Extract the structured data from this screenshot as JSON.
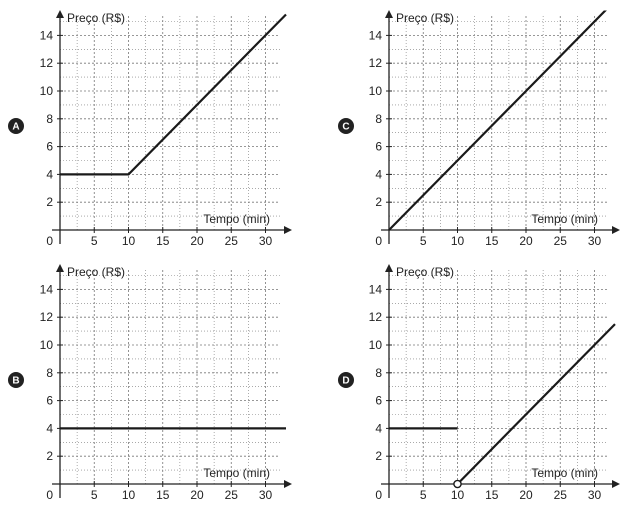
{
  "chart_data": [
    {
      "panel_label": "A",
      "type": "line",
      "ylabel": "Preço (R$)",
      "xlabel": "Tempo (min)",
      "origin_label": "0",
      "xlim": [
        0,
        32
      ],
      "ylim": [
        0,
        15.5
      ],
      "x_ticks": [
        5,
        10,
        15,
        20,
        25,
        30
      ],
      "y_ticks": [
        2,
        4,
        6,
        8,
        10,
        12,
        14
      ],
      "grid": true,
      "segments": [
        {
          "points": [
            [
              0,
              4
            ],
            [
              10,
              4
            ],
            [
              33,
              15.5
            ]
          ],
          "start_marker": "none",
          "end_marker": "none"
        }
      ]
    },
    {
      "panel_label": "C",
      "type": "line",
      "ylabel": "Preço (R$)",
      "xlabel": "Tempo (min)",
      "origin_label": "0",
      "xlim": [
        0,
        32
      ],
      "ylim": [
        0,
        15.5
      ],
      "x_ticks": [
        5,
        10,
        15,
        20,
        25,
        30
      ],
      "y_ticks": [
        2,
        4,
        6,
        8,
        10,
        12,
        14
      ],
      "grid": true,
      "segments": [
        {
          "points": [
            [
              0,
              0
            ],
            [
              32,
              16
            ]
          ],
          "start_marker": "none",
          "end_marker": "none"
        }
      ]
    },
    {
      "panel_label": "B",
      "type": "line",
      "ylabel": "Preço (R$)",
      "xlabel": "Tempo (min)",
      "origin_label": "0",
      "xlim": [
        0,
        32
      ],
      "ylim": [
        0,
        15.5
      ],
      "x_ticks": [
        5,
        10,
        15,
        20,
        25,
        30
      ],
      "y_ticks": [
        2,
        4,
        6,
        8,
        10,
        12,
        14
      ],
      "grid": true,
      "segments": [
        {
          "points": [
            [
              0,
              4
            ],
            [
              33,
              4
            ]
          ],
          "start_marker": "none",
          "end_marker": "none"
        }
      ]
    },
    {
      "panel_label": "D",
      "type": "line",
      "ylabel": "Preço (R$)",
      "xlabel": "Tempo (min)",
      "origin_label": "0",
      "xlim": [
        0,
        32
      ],
      "ylim": [
        0,
        15.5
      ],
      "x_ticks": [
        5,
        10,
        15,
        20,
        25,
        30
      ],
      "y_ticks": [
        2,
        4,
        6,
        8,
        10,
        12,
        14
      ],
      "grid": true,
      "segments": [
        {
          "points": [
            [
              0,
              4
            ],
            [
              10,
              4
            ]
          ],
          "start_marker": "none",
          "end_marker": "none"
        },
        {
          "points": [
            [
              10,
              0
            ],
            [
              33,
              11.5
            ]
          ],
          "start_marker": "open-circle",
          "end_marker": "none"
        }
      ]
    }
  ],
  "colors": {
    "line": "#1a1a1a",
    "grid": "#777777",
    "axis": "#222222",
    "badge": "#222222"
  }
}
